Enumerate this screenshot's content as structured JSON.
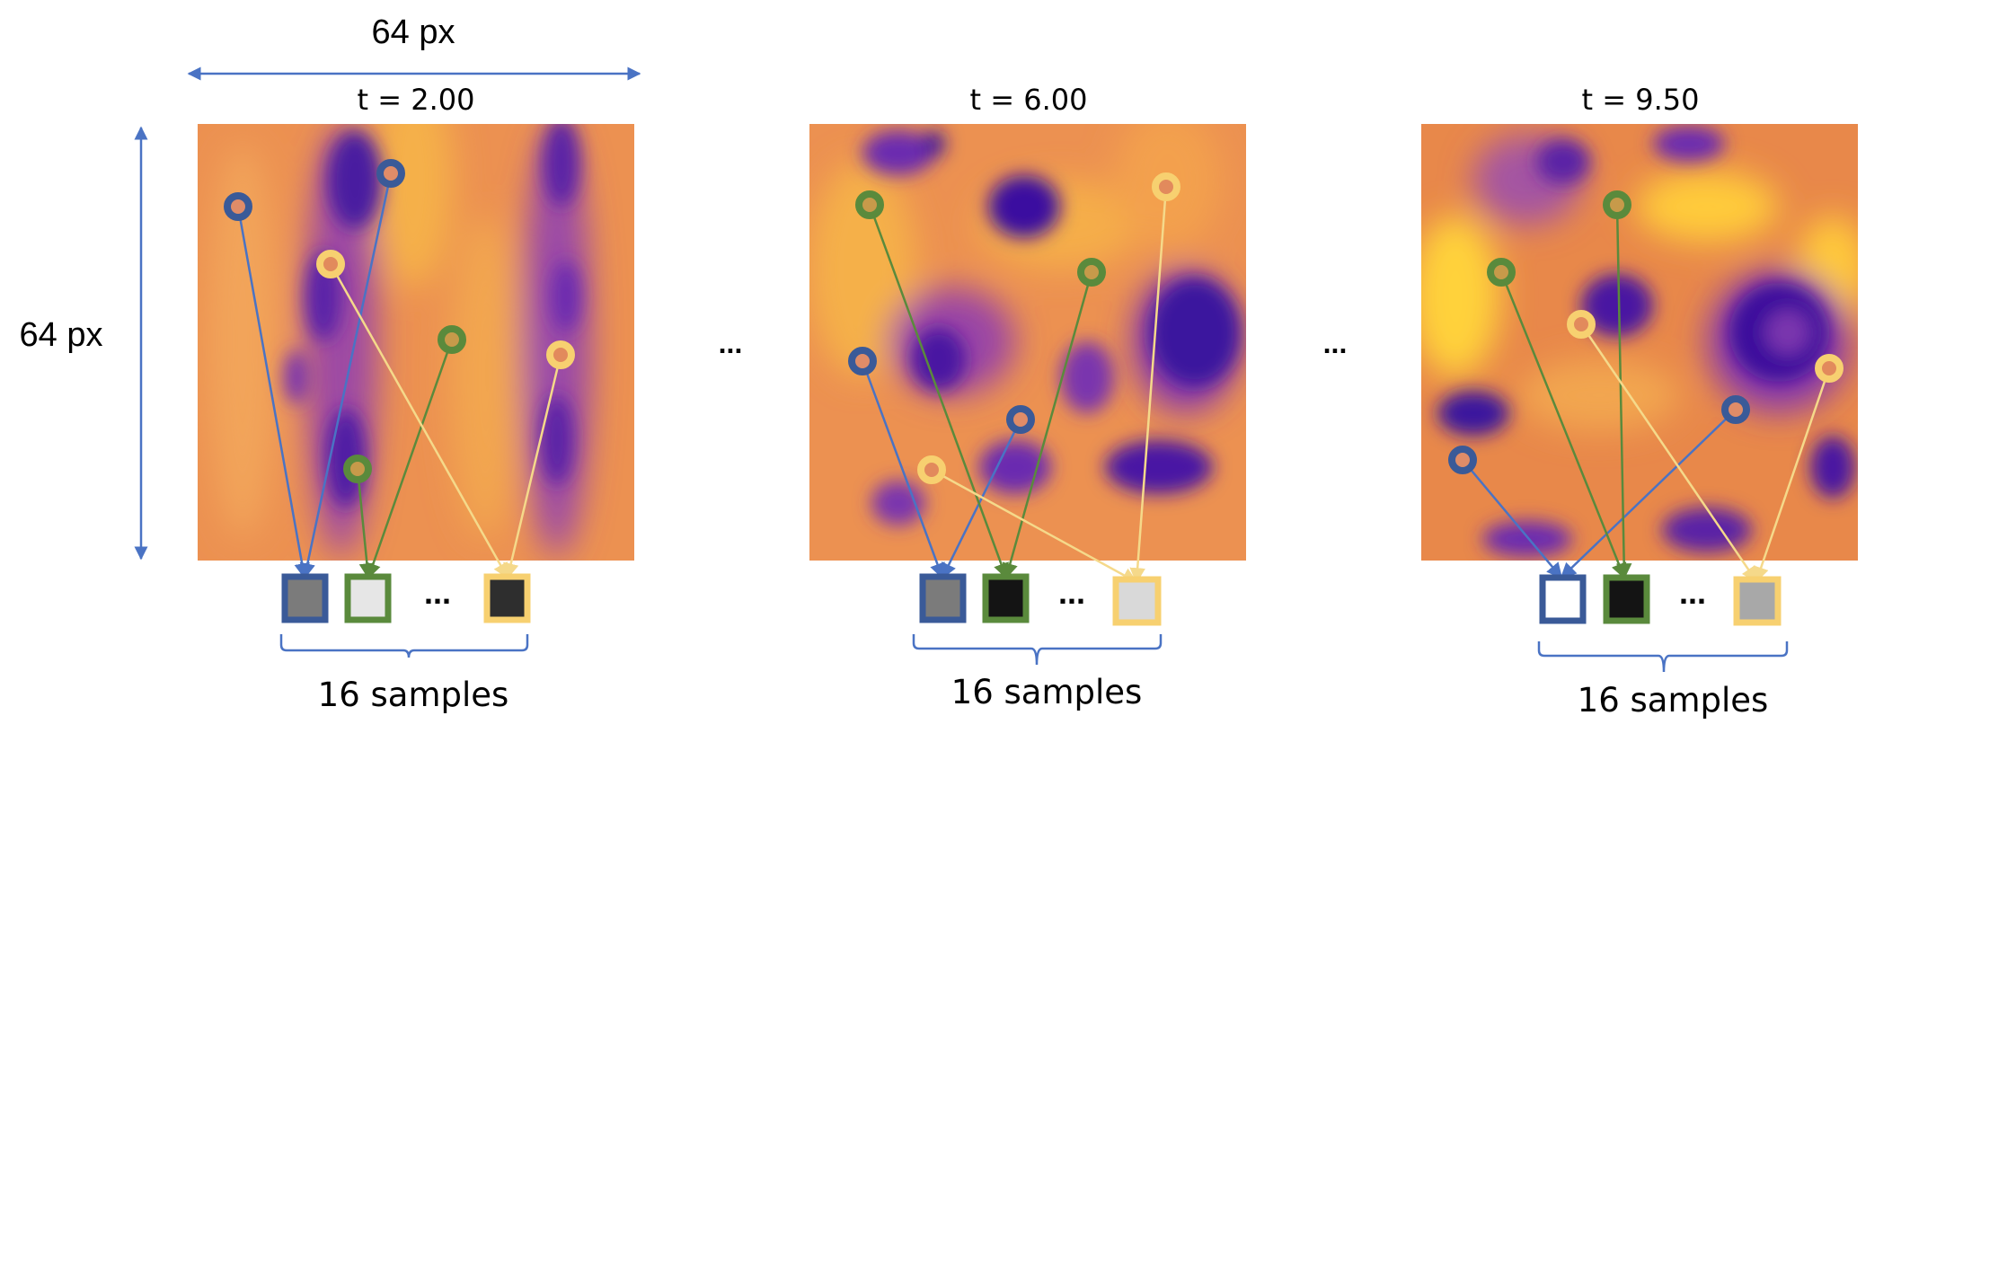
{
  "dimensions": {
    "width_label": "64 px",
    "height_label": "64 px"
  },
  "colors": {
    "blue": "#3a5a98",
    "blue_arrow": "#4a73c4",
    "green": "#5a8a3c",
    "yellow": "#f7d070",
    "yellow_arrow": "#f5d98a",
    "orange": "#f0924c",
    "purple": "#6a2bb0",
    "gold": "#ffcf3a"
  },
  "between_ellipsis": [
    "...",
    "..."
  ],
  "panels": [
    {
      "title": "t = 2.00",
      "ellipsis": "...",
      "samples_label": "16 samples",
      "samples": [
        {
          "color": "blue",
          "fill": "#7b7b7b"
        },
        {
          "color": "green",
          "fill": "#e6e6e6"
        },
        {
          "color": "yellow",
          "fill": "#2e2e2e"
        }
      ]
    },
    {
      "title": "t = 6.00",
      "ellipsis": "...",
      "samples_label": "16 samples",
      "samples": [
        {
          "color": "blue",
          "fill": "#7b7b7b"
        },
        {
          "color": "green",
          "fill": "#141414"
        },
        {
          "color": "yellow",
          "fill": "#d9d9d9"
        }
      ]
    },
    {
      "title": "t = 9.50",
      "ellipsis": "...",
      "samples_label": "16 samples",
      "samples": [
        {
          "color": "blue",
          "fill": "#ffffff"
        },
        {
          "color": "green",
          "fill": "#141414"
        },
        {
          "color": "yellow",
          "fill": "#a8a8a8"
        }
      ]
    }
  ]
}
